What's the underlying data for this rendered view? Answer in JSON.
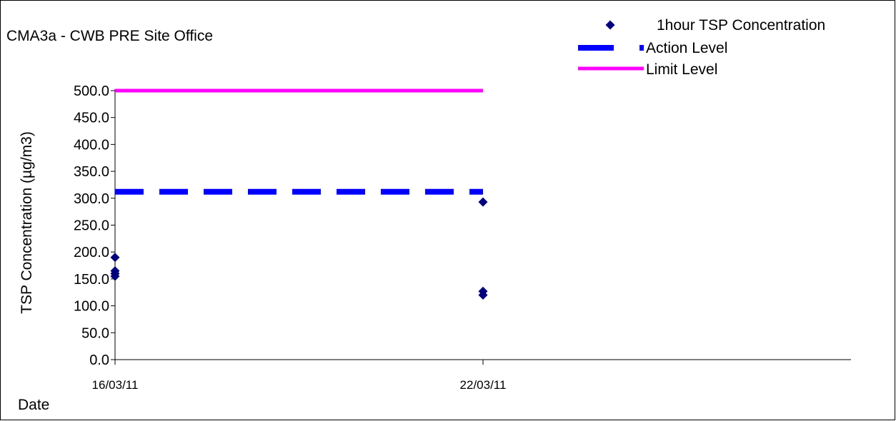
{
  "chart_data": {
    "type": "scatter",
    "title": "CMA3a - CWB PRE Site Office",
    "xlabel": "Date",
    "ylabel": "TSP Concentration (µg/m3)",
    "ylim": [
      0,
      500
    ],
    "yticks": [
      "0.0",
      "50.0",
      "100.0",
      "150.0",
      "200.0",
      "250.0",
      "300.0",
      "350.0",
      "400.0",
      "450.0",
      "500.0"
    ],
    "xlim": [
      "16/03/11",
      "28/03/11"
    ],
    "xticks": [
      "16/03/11",
      "22/03/11"
    ],
    "grid": false,
    "legend_position": "top-right",
    "series": [
      {
        "name": "1hour TSP Concentration",
        "type": "scatter",
        "marker": "diamond",
        "color": "#000080",
        "points": [
          {
            "x": "16/03/11",
            "y": 190
          },
          {
            "x": "16/03/11",
            "y": 165
          },
          {
            "x": "16/03/11",
            "y": 160
          },
          {
            "x": "16/03/11",
            "y": 155
          },
          {
            "x": "22/03/11",
            "y": 293
          },
          {
            "x": "22/03/11",
            "y": 127
          },
          {
            "x": "22/03/11",
            "y": 120
          }
        ]
      },
      {
        "name": "Action Level",
        "type": "line",
        "style": "dashed",
        "color": "#0000FF",
        "points": [
          {
            "x": "16/03/11",
            "y": 312
          },
          {
            "x": "22/03/11",
            "y": 312
          }
        ]
      },
      {
        "name": "Limit Level",
        "type": "line",
        "style": "solid",
        "color": "#FF00FF",
        "points": [
          {
            "x": "16/03/11",
            "y": 500
          },
          {
            "x": "22/03/11",
            "y": 500
          }
        ]
      }
    ]
  }
}
